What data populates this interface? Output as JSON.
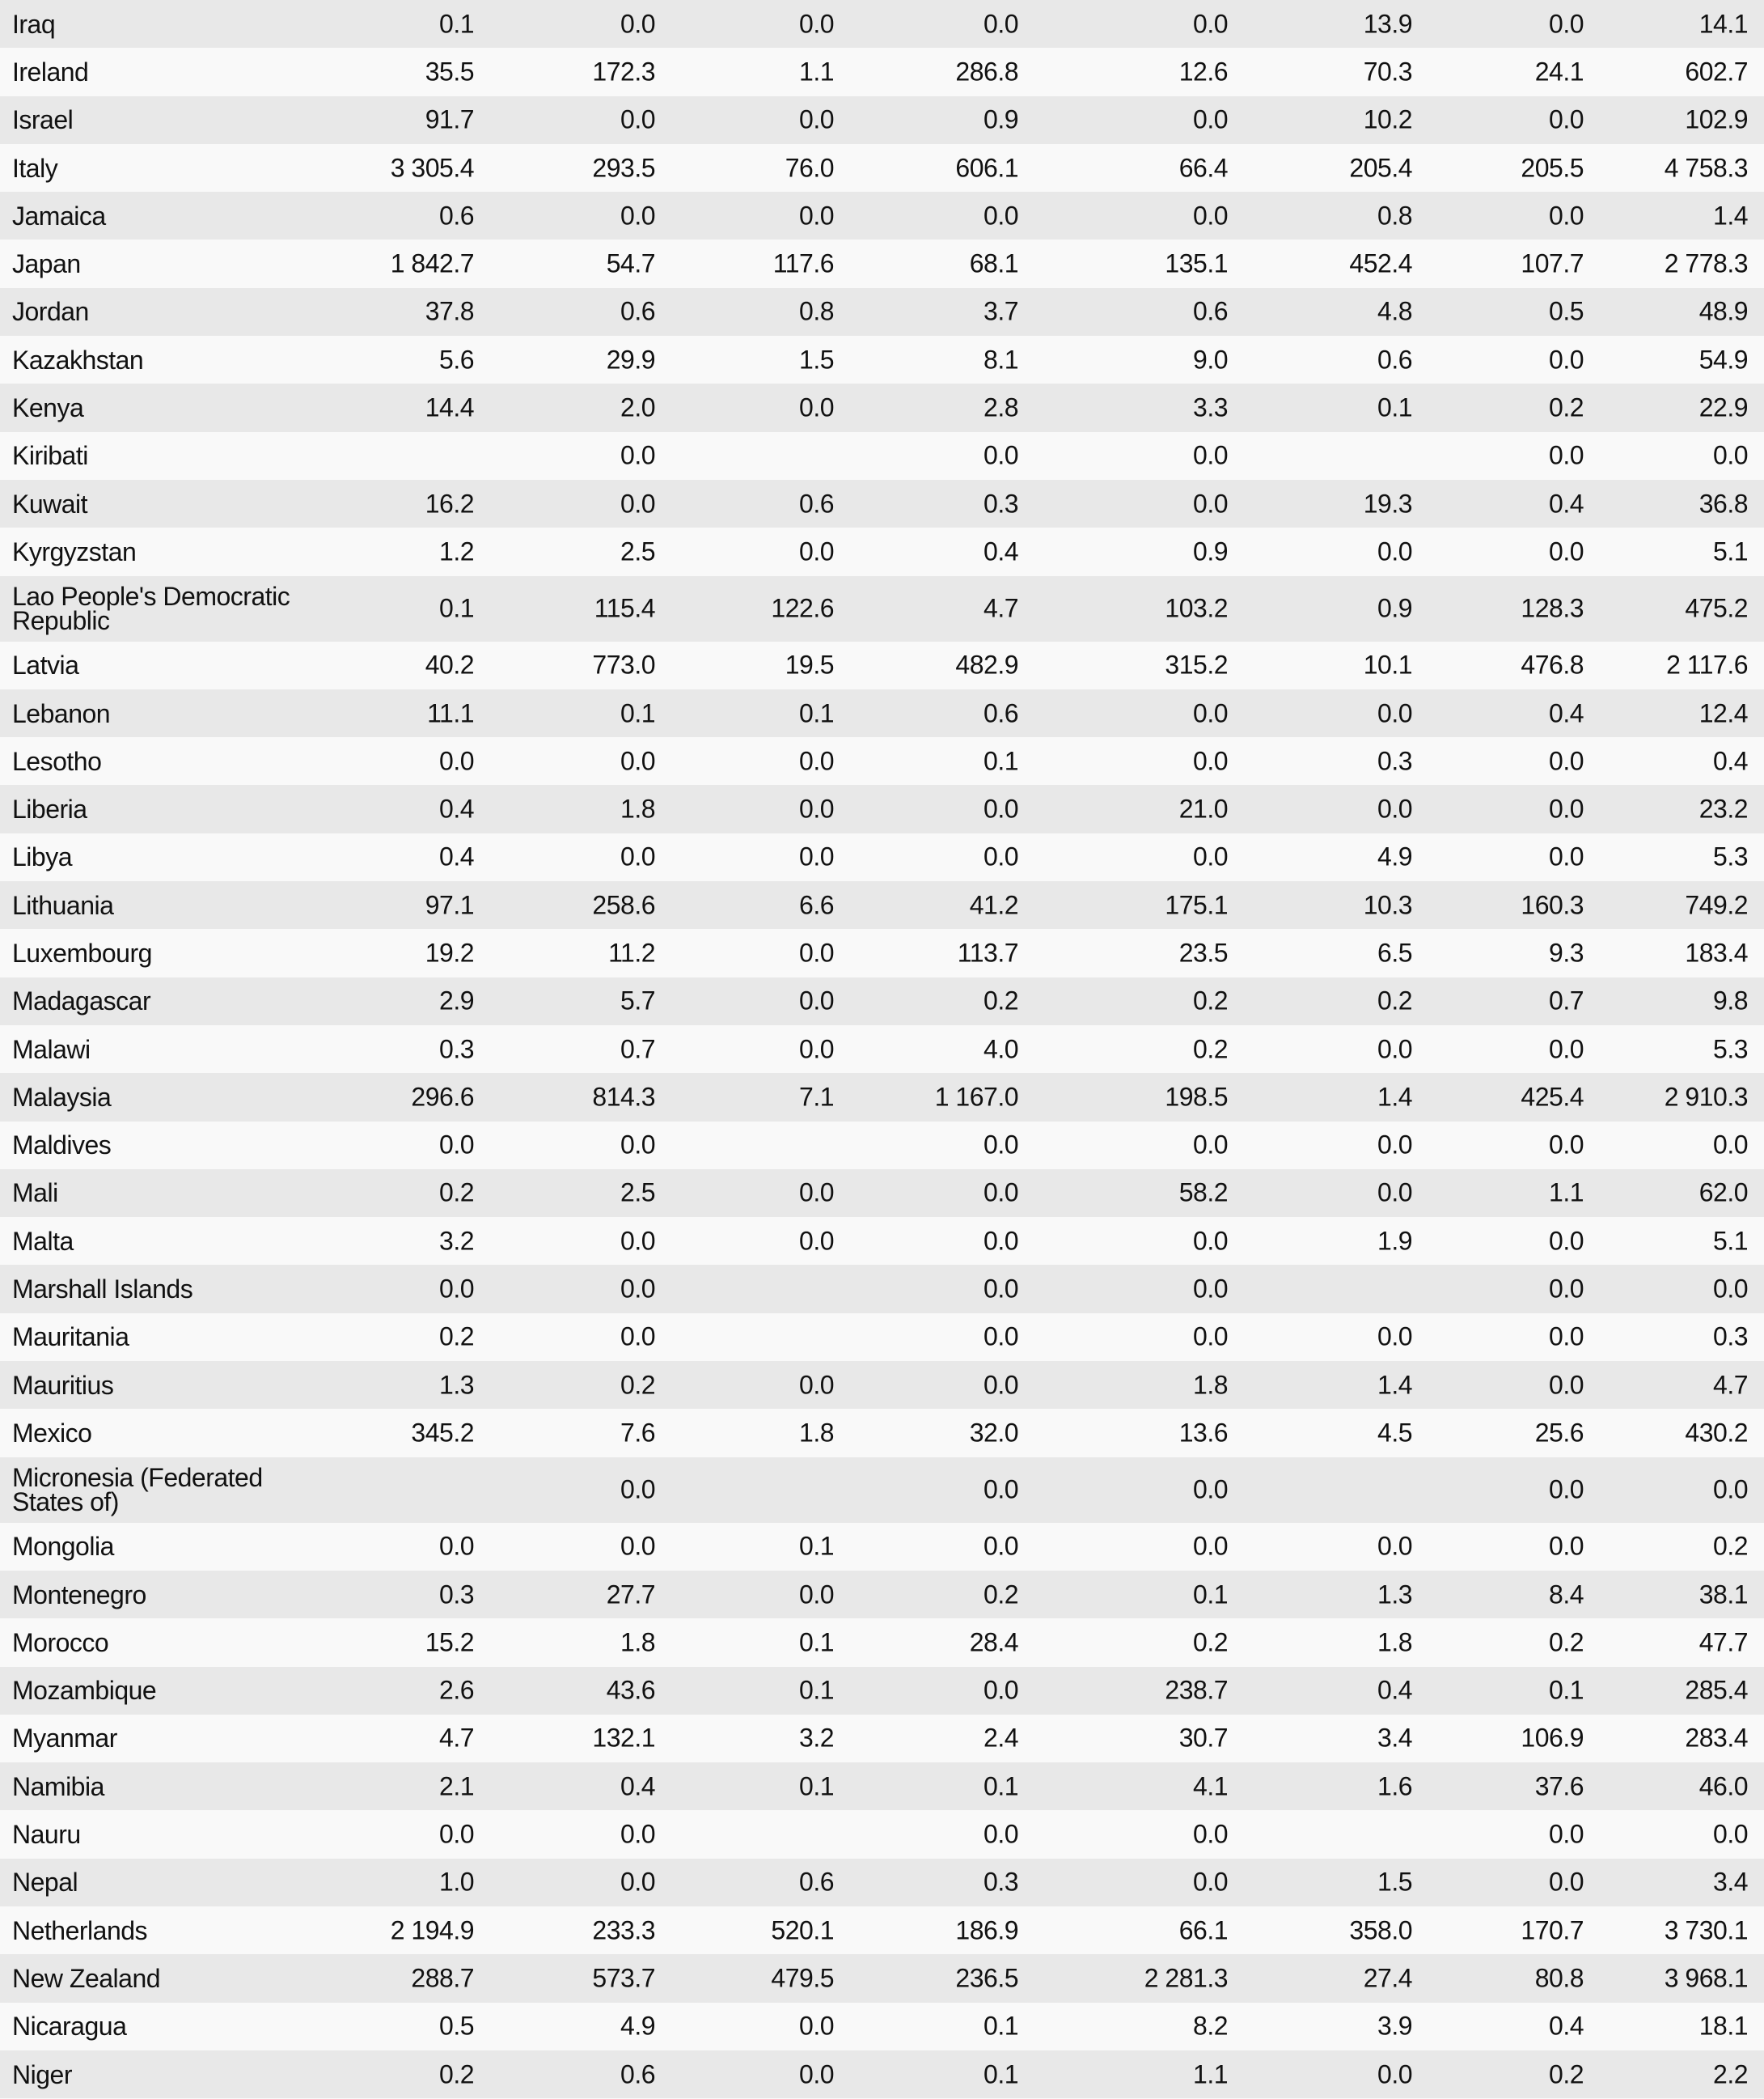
{
  "rows": [
    [
      "Iraq",
      "0.1",
      "0.0",
      "0.0",
      "0.0",
      "0.0",
      "13.9",
      "0.0",
      "14.1"
    ],
    [
      "Ireland",
      "35.5",
      "172.3",
      "1.1",
      "286.8",
      "12.6",
      "70.3",
      "24.1",
      "602.7"
    ],
    [
      "Israel",
      "91.7",
      "0.0",
      "0.0",
      "0.9",
      "0.0",
      "10.2",
      "0.0",
      "102.9"
    ],
    [
      "Italy",
      "3 305.4",
      "293.5",
      "76.0",
      "606.1",
      "66.4",
      "205.4",
      "205.5",
      "4 758.3"
    ],
    [
      "Jamaica",
      "0.6",
      "0.0",
      "0.0",
      "0.0",
      "0.0",
      "0.8",
      "0.0",
      "1.4"
    ],
    [
      "Japan",
      "1 842.7",
      "54.7",
      "117.6",
      "68.1",
      "135.1",
      "452.4",
      "107.7",
      "2 778.3"
    ],
    [
      "Jordan",
      "37.8",
      "0.6",
      "0.8",
      "3.7",
      "0.6",
      "4.8",
      "0.5",
      "48.9"
    ],
    [
      "Kazakhstan",
      "5.6",
      "29.9",
      "1.5",
      "8.1",
      "9.0",
      "0.6",
      "0.0",
      "54.9"
    ],
    [
      "Kenya",
      "14.4",
      "2.0",
      "0.0",
      "2.8",
      "3.3",
      "0.1",
      "0.2",
      "22.9"
    ],
    [
      "Kiribati",
      "",
      "0.0",
      "",
      "0.0",
      "0.0",
      "",
      "0.0",
      "0.0"
    ],
    [
      "Kuwait",
      "16.2",
      "0.0",
      "0.6",
      "0.3",
      "0.0",
      "19.3",
      "0.4",
      "36.8"
    ],
    [
      "Kyrgyzstan",
      "1.2",
      "2.5",
      "0.0",
      "0.4",
      "0.9",
      "0.0",
      "0.0",
      "5.1"
    ],
    [
      "Lao People's Democratic Republic",
      "0.1",
      "115.4",
      "122.6",
      "4.7",
      "103.2",
      "0.9",
      "128.3",
      "475.2"
    ],
    [
      "Latvia",
      "40.2",
      "773.0",
      "19.5",
      "482.9",
      "315.2",
      "10.1",
      "476.8",
      "2 117.6"
    ],
    [
      "Lebanon",
      "11.1",
      "0.1",
      "0.1",
      "0.6",
      "0.0",
      "0.0",
      "0.4",
      "12.4"
    ],
    [
      "Lesotho",
      "0.0",
      "0.0",
      "0.0",
      "0.1",
      "0.0",
      "0.3",
      "0.0",
      "0.4"
    ],
    [
      "Liberia",
      "0.4",
      "1.8",
      "0.0",
      "0.0",
      "21.0",
      "0.0",
      "0.0",
      "23.2"
    ],
    [
      "Libya",
      "0.4",
      "0.0",
      "0.0",
      "0.0",
      "0.0",
      "4.9",
      "0.0",
      "5.3"
    ],
    [
      "Lithuania",
      "97.1",
      "258.6",
      "6.6",
      "41.2",
      "175.1",
      "10.3",
      "160.3",
      "749.2"
    ],
    [
      "Luxembourg",
      "19.2",
      "11.2",
      "0.0",
      "113.7",
      "23.5",
      "6.5",
      "9.3",
      "183.4"
    ],
    [
      "Madagascar",
      "2.9",
      "5.7",
      "0.0",
      "0.2",
      "0.2",
      "0.2",
      "0.7",
      "9.8"
    ],
    [
      "Malawi",
      "0.3",
      "0.7",
      "0.0",
      "4.0",
      "0.2",
      "0.0",
      "0.0",
      "5.3"
    ],
    [
      "Malaysia",
      "296.6",
      "814.3",
      "7.1",
      "1 167.0",
      "198.5",
      "1.4",
      "425.4",
      "2 910.3"
    ],
    [
      "Maldives",
      "0.0",
      "0.0",
      "",
      "0.0",
      "0.0",
      "0.0",
      "0.0",
      "0.0"
    ],
    [
      "Mali",
      "0.2",
      "2.5",
      "0.0",
      "0.0",
      "58.2",
      "0.0",
      "1.1",
      "62.0"
    ],
    [
      "Malta",
      "3.2",
      "0.0",
      "0.0",
      "0.0",
      "0.0",
      "1.9",
      "0.0",
      "5.1"
    ],
    [
      "Marshall Islands",
      "0.0",
      "0.0",
      "",
      "0.0",
      "0.0",
      "",
      "0.0",
      "0.0"
    ],
    [
      "Mauritania",
      "0.2",
      "0.0",
      "",
      "0.0",
      "0.0",
      "0.0",
      "0.0",
      "0.3"
    ],
    [
      "Mauritius",
      "1.3",
      "0.2",
      "0.0",
      "0.0",
      "1.8",
      "1.4",
      "0.0",
      "4.7"
    ],
    [
      "Mexico",
      "345.2",
      "7.6",
      "1.8",
      "32.0",
      "13.6",
      "4.5",
      "25.6",
      "430.2"
    ],
    [
      "Micronesia (Federated States of)",
      "",
      "0.0",
      "",
      "0.0",
      "0.0",
      "",
      "0.0",
      "0.0"
    ],
    [
      "Mongolia",
      "0.0",
      "0.0",
      "0.1",
      "0.0",
      "0.0",
      "0.0",
      "0.0",
      "0.2"
    ],
    [
      "Montenegro",
      "0.3",
      "27.7",
      "0.0",
      "0.2",
      "0.1",
      "1.3",
      "8.4",
      "38.1"
    ],
    [
      "Morocco",
      "15.2",
      "1.8",
      "0.1",
      "28.4",
      "0.2",
      "1.8",
      "0.2",
      "47.7"
    ],
    [
      "Mozambique",
      "2.6",
      "43.6",
      "0.1",
      "0.0",
      "238.7",
      "0.4",
      "0.1",
      "285.4"
    ],
    [
      "Myanmar",
      "4.7",
      "132.1",
      "3.2",
      "2.4",
      "30.7",
      "3.4",
      "106.9",
      "283.4"
    ],
    [
      "Namibia",
      "2.1",
      "0.4",
      "0.1",
      "0.1",
      "4.1",
      "1.6",
      "37.6",
      "46.0"
    ],
    [
      "Nauru",
      "0.0",
      "0.0",
      "",
      "0.0",
      "0.0",
      "",
      "0.0",
      "0.0"
    ],
    [
      "Nepal",
      "1.0",
      "0.0",
      "0.6",
      "0.3",
      "0.0",
      "1.5",
      "0.0",
      "3.4"
    ],
    [
      "Netherlands",
      "2 194.9",
      "233.3",
      "520.1",
      "186.9",
      "66.1",
      "358.0",
      "170.7",
      "3 730.1"
    ],
    [
      "New Zealand",
      "288.7",
      "573.7",
      "479.5",
      "236.5",
      "2 281.3",
      "27.4",
      "80.8",
      "3 968.1"
    ],
    [
      "Nicaragua",
      "0.5",
      "4.9",
      "0.0",
      "0.1",
      "8.2",
      "3.9",
      "0.4",
      "18.1"
    ],
    [
      "Niger",
      "0.2",
      "0.6",
      "0.0",
      "0.1",
      "1.1",
      "0.0",
      "0.2",
      "2.2"
    ]
  ]
}
